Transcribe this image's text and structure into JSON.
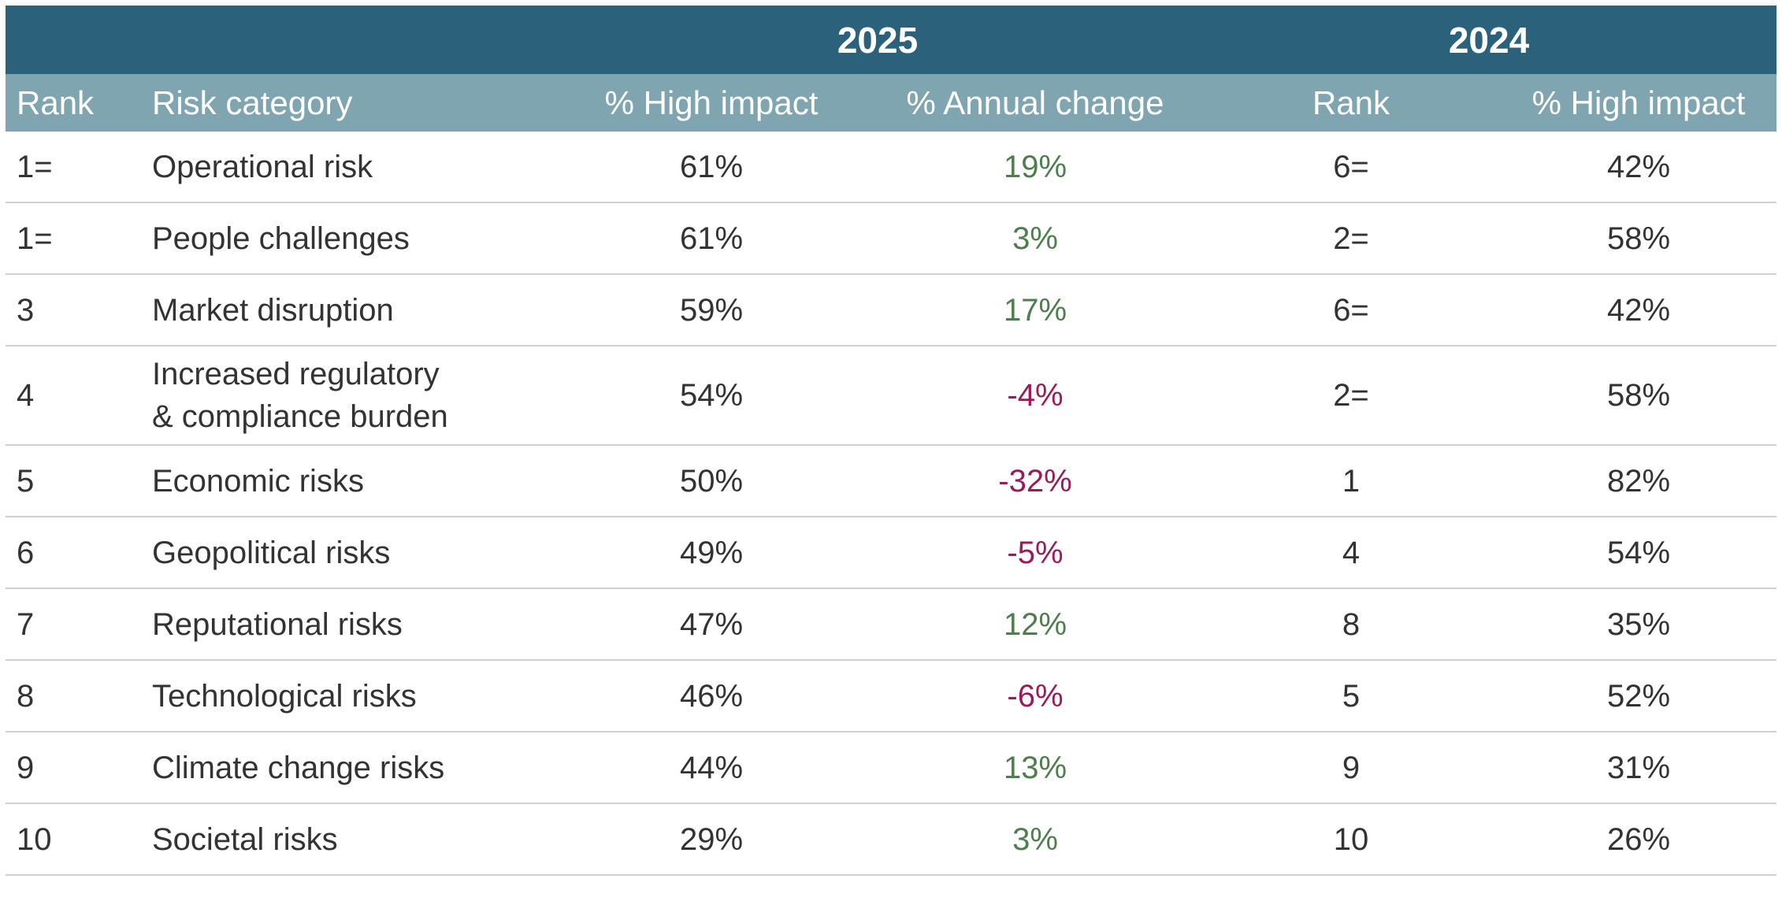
{
  "header": {
    "year_current": "2025",
    "year_previous": "2024"
  },
  "columns": {
    "rank": "Rank",
    "risk_category": "Risk category",
    "high_impact_2025": "% High impact",
    "annual_change": "% Annual change",
    "rank_2024": "Rank",
    "high_impact_2024": "% High impact"
  },
  "colors": {
    "header_dark": "#2b617b",
    "header_light": "#7fa6b0",
    "positive_change": "#4e7d4e",
    "negative_change": "#9b1b5a"
  },
  "rows": [
    {
      "rank": "1=",
      "category_line1": "Operational risk",
      "category_line2": "",
      "high_impact_2025": "61%",
      "annual_change": "19%",
      "change_sign": "pos",
      "rank_2024": "6=",
      "high_impact_2024": "42%"
    },
    {
      "rank": "1=",
      "category_line1": "People challenges",
      "category_line2": "",
      "high_impact_2025": "61%",
      "annual_change": "3%",
      "change_sign": "pos",
      "rank_2024": "2=",
      "high_impact_2024": "58%"
    },
    {
      "rank": "3",
      "category_line1": "Market disruption",
      "category_line2": "",
      "high_impact_2025": "59%",
      "annual_change": "17%",
      "change_sign": "pos",
      "rank_2024": "6=",
      "high_impact_2024": "42%"
    },
    {
      "rank": "4",
      "category_line1": "Increased regulatory",
      "category_line2": "& compliance burden",
      "high_impact_2025": "54%",
      "annual_change": "-4%",
      "change_sign": "neg",
      "rank_2024": "2=",
      "high_impact_2024": "58%"
    },
    {
      "rank": "5",
      "category_line1": "Economic risks",
      "category_line2": "",
      "high_impact_2025": "50%",
      "annual_change": "-32%",
      "change_sign": "neg",
      "rank_2024": "1",
      "high_impact_2024": "82%"
    },
    {
      "rank": "6",
      "category_line1": "Geopolitical risks",
      "category_line2": "",
      "high_impact_2025": "49%",
      "annual_change": "-5%",
      "change_sign": "neg",
      "rank_2024": "4",
      "high_impact_2024": "54%"
    },
    {
      "rank": "7",
      "category_line1": "Reputational risks",
      "category_line2": "",
      "high_impact_2025": "47%",
      "annual_change": "12%",
      "change_sign": "pos",
      "rank_2024": "8",
      "high_impact_2024": "35%"
    },
    {
      "rank": "8",
      "category_line1": "Technological risks",
      "category_line2": "",
      "high_impact_2025": "46%",
      "annual_change": "-6%",
      "change_sign": "neg",
      "rank_2024": "5",
      "high_impact_2024": "52%"
    },
    {
      "rank": "9",
      "category_line1": "Climate change risks",
      "category_line2": "",
      "high_impact_2025": "44%",
      "annual_change": "13%",
      "change_sign": "pos",
      "rank_2024": "9",
      "high_impact_2024": "31%"
    },
    {
      "rank": "10",
      "category_line1": "Societal risks",
      "category_line2": "",
      "high_impact_2025": "29%",
      "annual_change": "3%",
      "change_sign": "pos",
      "rank_2024": "10",
      "high_impact_2024": "26%"
    }
  ]
}
